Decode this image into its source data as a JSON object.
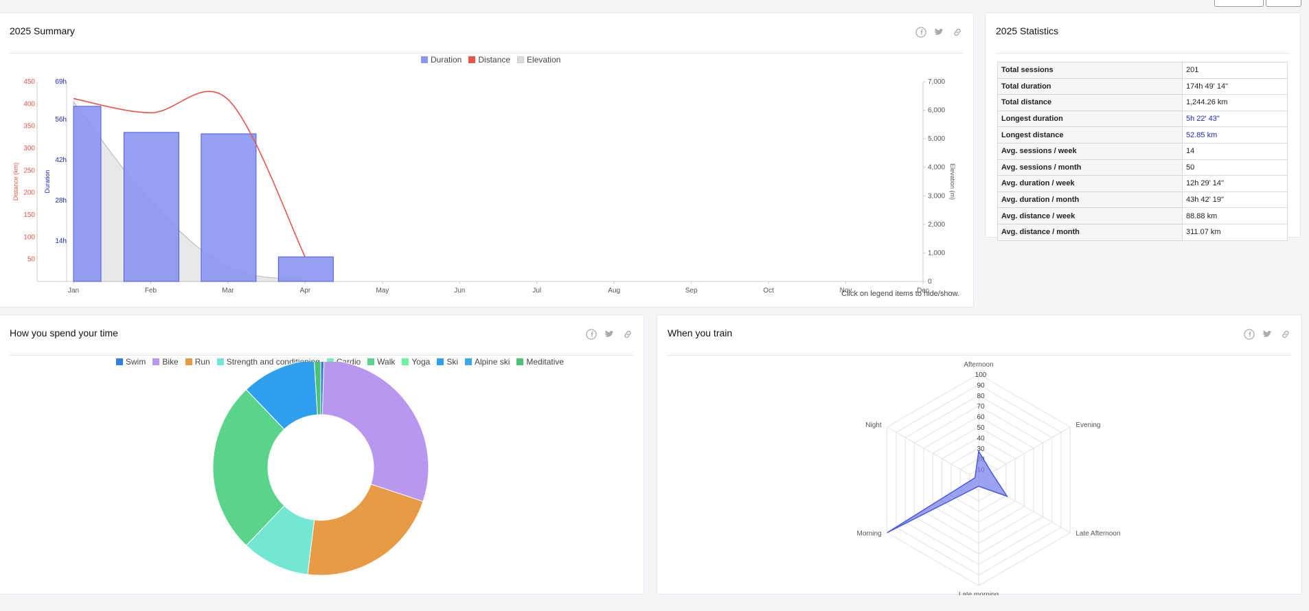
{
  "summary": {
    "title": "2025 Summary",
    "footnote": "Click on legend items to hide/show."
  },
  "statistics": {
    "title": "2025 Statistics",
    "rows": [
      {
        "label": "Total sessions",
        "value": "201",
        "link": false
      },
      {
        "label": "Total duration",
        "value": "174h 49' 14\"",
        "link": false
      },
      {
        "label": "Total distance",
        "value": "1,244.26 km",
        "link": false
      },
      {
        "label": "Longest duration",
        "value": "5h 22' 43\"",
        "link": true
      },
      {
        "label": "Longest distance",
        "value": "52.85 km",
        "link": true
      },
      {
        "label": "Avg. sessions / week",
        "value": "14",
        "link": false
      },
      {
        "label": "Avg. sessions / month",
        "value": "50",
        "link": false
      },
      {
        "label": "Avg. duration / week",
        "value": "12h 29' 14\"",
        "link": false
      },
      {
        "label": "Avg. duration / month",
        "value": "43h 42' 19\"",
        "link": false
      },
      {
        "label": "Avg. distance / week",
        "value": "88.88 km",
        "link": false
      },
      {
        "label": "Avg. distance / month",
        "value": "311.07 km",
        "link": false
      }
    ]
  },
  "time": {
    "title": "How you spend your time"
  },
  "train": {
    "title": "When you train"
  },
  "icons": [
    "facebook-icon",
    "twitter-icon",
    "link-icon"
  ],
  "colors": {
    "duration": "#8b96f2",
    "distance": "#e8564a",
    "elevation": "#dcdcdc",
    "axis_duration": "#1a2bcc",
    "link": "#1a2bcc"
  },
  "chart_data": [
    {
      "type": "bar",
      "title": "2025 Summary",
      "categories": [
        "Jan",
        "Feb",
        "Mar",
        "Apr",
        "May",
        "Jun",
        "Jul",
        "Aug",
        "Sep",
        "Oct",
        "Nov",
        "Dec"
      ],
      "series": [
        {
          "name": "Duration",
          "axis": "Duration",
          "values_hours": [
            60.5,
            51.5,
            51.0,
            8.5,
            null,
            null,
            null,
            null,
            null,
            null,
            null,
            null
          ]
        },
        {
          "name": "Distance",
          "type": "line",
          "axis": "Distance (km)",
          "values": [
            412,
            380,
            410,
            55,
            null,
            null,
            null,
            null,
            null,
            null,
            null,
            null
          ]
        },
        {
          "name": "Elevation",
          "type": "area",
          "axis": "Elevation (m)",
          "values": [
            6300,
            2800,
            500,
            50,
            null,
            null,
            null,
            null,
            null,
            null,
            null,
            null
          ]
        }
      ],
      "axes": {
        "distance": {
          "label": "Distance (km)",
          "ticks": [
            "450",
            "400",
            "350",
            "300",
            "250",
            "200",
            "150",
            "100",
            "50"
          ],
          "range": [
            0,
            450
          ]
        },
        "duration": {
          "label": "Duration",
          "ticks": [
            "69h",
            "56h",
            "42h",
            "28h",
            "14h"
          ],
          "range": [
            0,
            69
          ]
        },
        "elevation": {
          "label": "Elevation (m)",
          "ticks": [
            "7,000",
            "6,000",
            "5,000",
            "4,000",
            "3,000",
            "2,000",
            "1,000",
            "0"
          ],
          "range": [
            0,
            7000
          ]
        }
      },
      "legend": {
        "position": "top-center"
      }
    },
    {
      "type": "pie",
      "donut": true,
      "categories": [
        "Swim",
        "Bike",
        "Run",
        "Strength and conditioning",
        "Cardio",
        "Walk",
        "Yoga",
        "Ski",
        "Alpine ski",
        "Meditative"
      ],
      "colors": [
        "#2f7fe8",
        "#b797ef",
        "#e89b44",
        "#72e8d4",
        "#7cefb8",
        "#5ad48a",
        "#6cf2a0",
        "#2fa0ee",
        "#3aa8f0",
        "#4cc277"
      ],
      "values": [
        0.5,
        30.5,
        22.5,
        10.5,
        0,
        26.5,
        0,
        11.5,
        0,
        1.0
      ],
      "legend": {
        "position": "top"
      }
    },
    {
      "type": "radar",
      "categories": [
        "Afternoon",
        "Evening",
        "Late Afternoon",
        "Late morning",
        "Morning",
        "Night"
      ],
      "values": [
        27,
        14,
        31,
        6,
        100,
        4
      ],
      "range": [
        0,
        100
      ],
      "ticks": [
        "10",
        "20",
        "30",
        "40",
        "50",
        "60",
        "70",
        "80",
        "90",
        "100"
      ]
    }
  ]
}
